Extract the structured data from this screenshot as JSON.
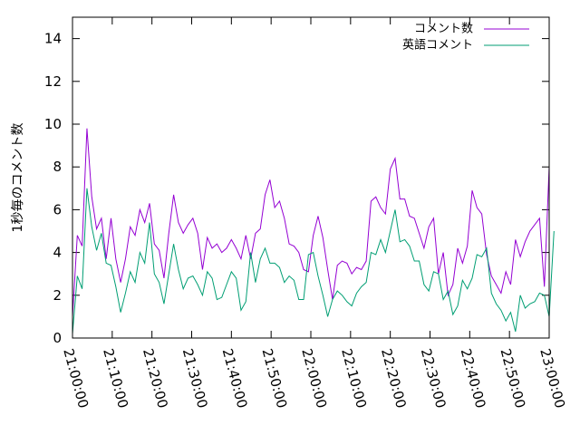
{
  "chart_data": {
    "type": "line",
    "title": "",
    "xlabel": "",
    "ylabel": "1秒毎のコメント数",
    "xlim": [
      "21:00:00",
      "23:00:00"
    ],
    "ylim": [
      0,
      15
    ],
    "x_ticks": [
      "21:00:00",
      "21:10:00",
      "21:20:00",
      "21:30:00",
      "21:40:00",
      "21:50:00",
      "22:00:00",
      "22:10:00",
      "22:20:00",
      "22:30:00",
      "22:40:00",
      "22:50:00",
      "23:00:00"
    ],
    "y_ticks": [
      "0",
      "2",
      "4",
      "6",
      "8",
      "10",
      "12",
      "14"
    ],
    "grid": false,
    "legend_position": "top-right",
    "x_interval_minutes": 1,
    "series": [
      {
        "name": "コメント数",
        "color": "#9400d3",
        "values": [
          1.0,
          4.8,
          4.3,
          9.8,
          6.6,
          5.1,
          5.6,
          3.7,
          5.6,
          3.7,
          2.6,
          3.7,
          5.2,
          4.8,
          6.0,
          5.4,
          6.3,
          4.4,
          4.1,
          2.8,
          4.9,
          6.7,
          5.4,
          4.9,
          5.3,
          5.6,
          4.9,
          3.2,
          4.7,
          4.2,
          4.4,
          4.0,
          4.2,
          4.6,
          4.2,
          3.7,
          4.8,
          3.7,
          4.9,
          5.1,
          6.7,
          7.4,
          6.1,
          6.4,
          5.6,
          4.4,
          4.3,
          4.0,
          3.2,
          3.1,
          4.8,
          5.7,
          4.7,
          3.2,
          1.8,
          3.4,
          3.6,
          3.5,
          3.0,
          3.3,
          3.2,
          3.6,
          6.4,
          6.6,
          6.1,
          5.8,
          7.9,
          8.4,
          6.5,
          6.5,
          5.7,
          5.6,
          4.9,
          4.2,
          5.2,
          5.6,
          3.0,
          4.0,
          2.0,
          2.5,
          4.2,
          3.5,
          4.3,
          6.9,
          6.1,
          5.8,
          3.9,
          2.9,
          2.5,
          2.1,
          3.1,
          2.5,
          4.6,
          3.8,
          4.5,
          5.0,
          5.3,
          5.6,
          2.4,
          8.0
        ]
      },
      {
        "name": "英語コメント",
        "color": "#009e73",
        "values": [
          0.2,
          2.9,
          2.3,
          7.0,
          5.2,
          4.1,
          4.9,
          3.5,
          3.4,
          2.4,
          1.2,
          2.1,
          3.1,
          2.6,
          4.0,
          3.5,
          5.4,
          3.0,
          2.6,
          1.6,
          3.0,
          4.4,
          3.2,
          2.3,
          2.8,
          2.9,
          2.5,
          2.0,
          3.1,
          2.8,
          1.8,
          1.9,
          2.5,
          3.1,
          2.8,
          1.3,
          1.7,
          4.0,
          2.6,
          3.7,
          4.2,
          3.5,
          3.5,
          3.3,
          2.6,
          2.9,
          2.7,
          1.8,
          1.8,
          3.9,
          4.0,
          2.9,
          2.0,
          1.0,
          1.8,
          2.2,
          2.0,
          1.7,
          1.5,
          2.1,
          2.4,
          2.6,
          4.0,
          3.9,
          4.6,
          4.0,
          5.0,
          6.0,
          4.5,
          4.6,
          4.3,
          3.6,
          3.6,
          2.5,
          2.2,
          3.1,
          3.0,
          1.8,
          2.2,
          1.1,
          1.5,
          2.7,
          2.3,
          2.8,
          3.9,
          3.8,
          4.2,
          2.1,
          1.6,
          1.3,
          0.8,
          1.2,
          0.3,
          2.0,
          1.4,
          1.6,
          1.7,
          2.1,
          2.0,
          1.0,
          5.0
        ]
      }
    ]
  }
}
